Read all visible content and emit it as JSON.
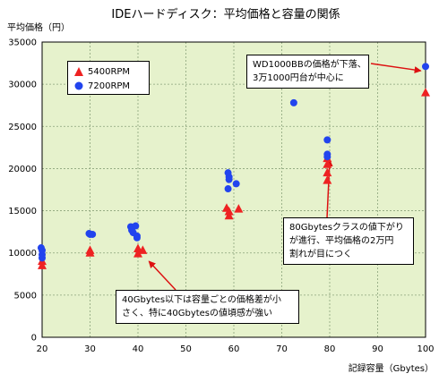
{
  "chart_data": {
    "type": "scatter",
    "title": "IDEハードディスク：平均価格と容量の関係",
    "ylabel": "平均価格（円）",
    "xlabel": "記録容量（Gbytes）",
    "xlim": [
      20,
      100
    ],
    "ylim": [
      0,
      35000
    ],
    "xticks": [
      20,
      30,
      40,
      50,
      60,
      70,
      80,
      90,
      100
    ],
    "yticks": [
      0,
      5000,
      10000,
      15000,
      20000,
      25000,
      30000,
      35000
    ],
    "grid": true,
    "plot_background": "#e6f2cc",
    "legend_position": "top-left",
    "series": [
      {
        "name": "5400RPM",
        "marker": "triangle",
        "color": "#ee2222",
        "points": [
          [
            20,
            9000
          ],
          [
            20,
            8500
          ],
          [
            30,
            10300
          ],
          [
            30,
            10000
          ],
          [
            40,
            10500
          ],
          [
            40,
            9900
          ],
          [
            41,
            10300
          ],
          [
            58.5,
            15300
          ],
          [
            59,
            14900
          ],
          [
            59,
            14400
          ],
          [
            61,
            15200
          ],
          [
            79.5,
            21200
          ],
          [
            79.5,
            20500
          ],
          [
            79.5,
            19500
          ],
          [
            79.5,
            18600
          ],
          [
            100,
            29000
          ]
        ]
      },
      {
        "name": "7200RPM",
        "marker": "circle",
        "color": "#2244ee",
        "points": [
          [
            19.8,
            10600
          ],
          [
            20,
            10300
          ],
          [
            20,
            9800
          ],
          [
            20,
            9400
          ],
          [
            29.8,
            12300
          ],
          [
            30,
            12200
          ],
          [
            30.5,
            12200
          ],
          [
            38.5,
            13100
          ],
          [
            38.7,
            12700
          ],
          [
            39,
            12400
          ],
          [
            39.5,
            13200
          ],
          [
            39.8,
            12000
          ],
          [
            39.8,
            11800
          ],
          [
            58.8,
            19500
          ],
          [
            59,
            19000
          ],
          [
            59,
            18700
          ],
          [
            60.5,
            18200
          ],
          [
            58.8,
            17600
          ],
          [
            72.5,
            27800
          ],
          [
            79.5,
            23400
          ],
          [
            79.5,
            21700
          ],
          [
            79.5,
            21400
          ],
          [
            100,
            32100
          ]
        ]
      }
    ],
    "annotations": [
      {
        "id": "wd",
        "lines": [
          "WD1000BBの価格が下落、",
          "3万1000円台が中心に"
        ],
        "target": [
          99,
          31600
        ]
      },
      {
        "id": "g80",
        "lines": [
          "80Gbytesクラスの値下がり",
          "が進行、平均価格の2万円",
          "割れが目につく"
        ],
        "target": [
          80,
          21000
        ]
      },
      {
        "id": "g40",
        "lines": [
          "40Gbytes以下は容量ごとの価格差が小",
          "さく、特に40Gbytesの値頃感が強い"
        ],
        "target": [
          42.3,
          9000
        ]
      }
    ]
  }
}
